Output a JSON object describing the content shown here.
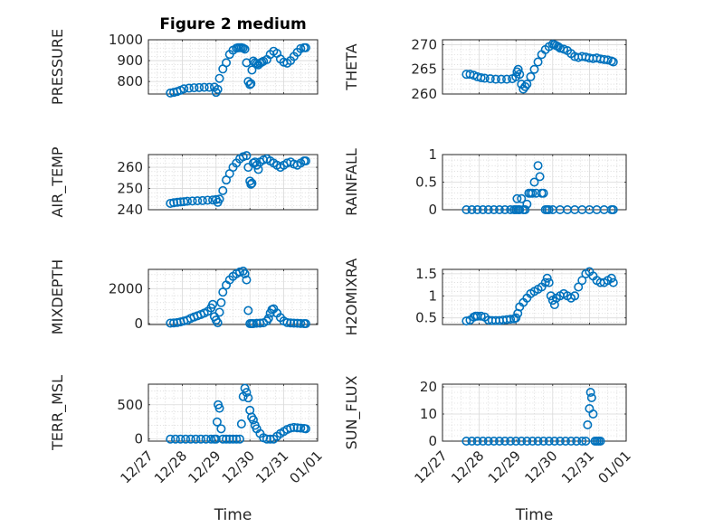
{
  "chart_data": [
    {
      "id": "pressure",
      "type": "scatter",
      "title": "Figure 2 medium",
      "ylabel": "PRESSURE",
      "xlabel": "",
      "ylim": [
        740,
        1000
      ],
      "yticks": [
        800,
        900,
        1000
      ],
      "ytick_labels": [
        "800",
        "900",
        "1000"
      ],
      "xlim": [
        0,
        5
      ],
      "xtick_labels": [],
      "grid": true,
      "x": [
        0.65,
        0.75,
        0.85,
        0.95,
        1.05,
        1.2,
        1.35,
        1.5,
        1.65,
        1.8,
        1.95,
        2.0,
        2.05,
        2.1,
        2.2,
        2.3,
        2.4,
        2.5,
        2.6,
        2.65,
        2.7,
        2.75,
        2.8,
        2.85,
        2.9,
        2.95,
        3.0,
        3.03,
        3.06,
        3.1,
        3.15,
        3.2,
        3.25,
        3.3,
        3.35,
        3.4,
        3.5,
        3.6,
        3.7,
        3.8,
        3.9,
        4.0,
        4.1,
        4.2,
        4.3,
        4.4,
        4.5,
        4.6,
        4.65
      ],
      "y": [
        745,
        748,
        752,
        758,
        765,
        768,
        770,
        771,
        772,
        772,
        773,
        748,
        762,
        815,
        860,
        890,
        930,
        950,
        960,
        962,
        962,
        962,
        960,
        955,
        890,
        800,
        785,
        790,
        855,
        898,
        890,
        885,
        880,
        888,
        893,
        897,
        905,
        930,
        945,
        935,
        908,
        893,
        888,
        900,
        920,
        940,
        958,
        962,
        962
      ]
    },
    {
      "id": "theta",
      "type": "scatter",
      "title": "",
      "ylabel": "THETA",
      "xlabel": "",
      "ylim": [
        260,
        271
      ],
      "yticks": [
        260,
        265,
        270
      ],
      "ytick_labels": [
        "260",
        "265",
        "270"
      ],
      "xlim": [
        0,
        5
      ],
      "xtick_labels": [],
      "grid": true,
      "x": [
        0.65,
        0.75,
        0.85,
        0.95,
        1.05,
        1.15,
        1.3,
        1.45,
        1.6,
        1.75,
        1.9,
        2.0,
        2.03,
        2.06,
        2.1,
        2.15,
        2.2,
        2.25,
        2.3,
        2.4,
        2.5,
        2.6,
        2.7,
        2.8,
        2.9,
        3.0,
        3.05,
        3.1,
        3.15,
        3.2,
        3.3,
        3.4,
        3.5,
        3.6,
        3.7,
        3.8,
        3.9,
        4.0,
        4.1,
        4.2,
        4.3,
        4.4,
        4.5,
        4.6,
        4.65
      ],
      "y": [
        264,
        264,
        263.8,
        263.5,
        263.3,
        263.2,
        263.1,
        263,
        263,
        263,
        263.1,
        263.5,
        264.5,
        265,
        264,
        262,
        261,
        261.5,
        262,
        263.5,
        265,
        266.5,
        268,
        269,
        269.6,
        270.1,
        270,
        269.8,
        269.6,
        269.3,
        269.1,
        268.8,
        268.2,
        267.6,
        267.4,
        267.6,
        267.5,
        267.3,
        267.2,
        267.3,
        267.1,
        267,
        266.9,
        266.7,
        266.5
      ]
    },
    {
      "id": "air_temp",
      "type": "scatter",
      "title": "",
      "ylabel": "AIR_TEMP",
      "xlabel": "",
      "ylim": [
        240,
        266
      ],
      "yticks": [
        240,
        250,
        260
      ],
      "ytick_labels": [
        "240",
        "250",
        "260"
      ],
      "xlim": [
        0,
        5
      ],
      "xtick_labels": [],
      "grid": true,
      "x": [
        0.65,
        0.75,
        0.85,
        0.95,
        1.05,
        1.15,
        1.3,
        1.45,
        1.6,
        1.75,
        1.9,
        2.0,
        2.05,
        2.1,
        2.2,
        2.3,
        2.4,
        2.5,
        2.6,
        2.7,
        2.8,
        2.9,
        2.95,
        3.0,
        3.03,
        3.06,
        3.1,
        3.15,
        3.2,
        3.25,
        3.3,
        3.4,
        3.5,
        3.6,
        3.7,
        3.8,
        3.9,
        4.0,
        4.1,
        4.2,
        4.3,
        4.4,
        4.5,
        4.6,
        4.65
      ],
      "y": [
        243,
        243.3,
        243.5,
        243.7,
        243.8,
        244,
        244.1,
        244.2,
        244.3,
        244.5,
        244.6,
        244.8,
        243.5,
        245,
        249,
        254,
        257,
        260,
        262,
        264,
        265,
        265.5,
        260,
        253.5,
        252,
        252.5,
        262,
        262.5,
        261,
        259,
        262.5,
        263.5,
        264,
        263,
        262,
        261,
        260,
        261,
        262,
        262.5,
        261.5,
        261,
        262,
        263,
        263
      ]
    },
    {
      "id": "rainfall",
      "type": "scatter",
      "title": "",
      "ylabel": "RAINFALL",
      "xlabel": "",
      "ylim": [
        0,
        1
      ],
      "yticks": [
        0,
        0.5,
        1
      ],
      "ytick_labels": [
        "0",
        "0.5",
        "1"
      ],
      "xlim": [
        0,
        5
      ],
      "xtick_labels": [],
      "grid": true,
      "x": [
        0.65,
        0.8,
        0.95,
        1.1,
        1.25,
        1.4,
        1.55,
        1.7,
        1.85,
        1.95,
        2.0,
        2.03,
        2.06,
        2.1,
        2.15,
        2.2,
        2.25,
        2.3,
        2.35,
        2.4,
        2.45,
        2.5,
        2.55,
        2.6,
        2.65,
        2.7,
        2.75,
        2.8,
        2.85,
        2.9,
        3.0,
        3.2,
        3.4,
        3.6,
        3.8,
        4.0,
        4.2,
        4.4,
        4.6,
        4.65
      ],
      "y": [
        0,
        0,
        0,
        0,
        0,
        0,
        0,
        0,
        0,
        0,
        0,
        0.2,
        0,
        0,
        0.2,
        0,
        0,
        0.1,
        0.3,
        0.3,
        0.3,
        0.5,
        0.3,
        0.8,
        0.6,
        0.3,
        0.3,
        0,
        0,
        0,
        0,
        0,
        0,
        0,
        0,
        0,
        0,
        0,
        0,
        0
      ]
    },
    {
      "id": "mixdepth",
      "type": "scatter",
      "title": "",
      "ylabel": "MIXDEPTH",
      "xlabel": "",
      "ylim": [
        -50,
        3100
      ],
      "yticks": [
        0,
        2000
      ],
      "ytick_labels": [
        "0",
        "2000"
      ],
      "xlim": [
        0,
        5
      ],
      "xtick_labels": [],
      "grid": true,
      "x": [
        0.65,
        0.75,
        0.85,
        0.95,
        1.05,
        1.15,
        1.25,
        1.35,
        1.45,
        1.55,
        1.65,
        1.75,
        1.85,
        1.9,
        1.95,
        2.0,
        2.05,
        2.1,
        2.15,
        2.2,
        2.3,
        2.4,
        2.5,
        2.6,
        2.7,
        2.8,
        2.85,
        2.9,
        2.95,
        3.0,
        3.05,
        3.1,
        3.2,
        3.3,
        3.4,
        3.5,
        3.55,
        3.6,
        3.65,
        3.7,
        3.8,
        3.9,
        4.0,
        4.1,
        4.2,
        4.3,
        4.4,
        4.5,
        4.6,
        4.65
      ],
      "y": [
        30,
        40,
        60,
        100,
        150,
        200,
        300,
        380,
        450,
        520,
        600,
        700,
        900,
        1100,
        400,
        200,
        50,
        650,
        1200,
        1800,
        2200,
        2500,
        2700,
        2850,
        2950,
        3000,
        2850,
        2500,
        750,
        0,
        0,
        0,
        20,
        30,
        50,
        150,
        300,
        600,
        800,
        850,
        600,
        350,
        150,
        60,
        40,
        30,
        20,
        10,
        0,
        0
      ]
    },
    {
      "id": "h2omixra",
      "type": "scatter",
      "title": "",
      "ylabel": "H2OMIXRA",
      "xlabel": "",
      "ylim": [
        0.35,
        1.6
      ],
      "yticks": [
        0.5,
        1,
        1.5
      ],
      "ytick_labels": [
        "0.5",
        "1",
        "1.5"
      ],
      "xlim": [
        0,
        5
      ],
      "xtick_labels": [],
      "grid": true,
      "x": [
        0.65,
        0.75,
        0.85,
        0.9,
        0.95,
        1.05,
        1.15,
        1.25,
        1.35,
        1.45,
        1.55,
        1.65,
        1.75,
        1.85,
        1.95,
        2.0,
        2.05,
        2.1,
        2.2,
        2.3,
        2.4,
        2.5,
        2.6,
        2.7,
        2.8,
        2.85,
        2.9,
        2.95,
        3.0,
        3.05,
        3.1,
        3.2,
        3.3,
        3.4,
        3.5,
        3.6,
        3.7,
        3.8,
        3.9,
        4.0,
        4.1,
        4.2,
        4.3,
        4.4,
        4.5,
        4.6,
        4.65
      ],
      "y": [
        0.43,
        0.45,
        0.52,
        0.54,
        0.54,
        0.54,
        0.52,
        0.45,
        0.44,
        0.44,
        0.44,
        0.45,
        0.46,
        0.47,
        0.48,
        0.5,
        0.6,
        0.75,
        0.85,
        0.95,
        1.05,
        1.1,
        1.15,
        1.2,
        1.3,
        1.4,
        1.3,
        1.0,
        0.9,
        0.8,
        0.95,
        1.0,
        1.05,
        1.0,
        0.95,
        1.0,
        1.2,
        1.35,
        1.5,
        1.55,
        1.45,
        1.35,
        1.3,
        1.3,
        1.35,
        1.4,
        1.3
      ]
    },
    {
      "id": "terr_msl",
      "type": "scatter",
      "title": "",
      "ylabel": "TERR_MSL",
      "xlabel": "Time",
      "ylim": [
        -30,
        800
      ],
      "yticks": [
        0,
        500
      ],
      "ytick_labels": [
        "0",
        "500"
      ],
      "xlim": [
        0,
        5
      ],
      "xtick_labels": [
        "12/27",
        "12/28",
        "12/29",
        "12/30",
        "12/31",
        "01/01"
      ],
      "grid": true,
      "x": [
        0.65,
        0.8,
        0.95,
        1.1,
        1.25,
        1.4,
        1.55,
        1.7,
        1.85,
        1.95,
        2.0,
        2.03,
        2.06,
        2.1,
        2.15,
        2.2,
        2.3,
        2.4,
        2.5,
        2.6,
        2.7,
        2.75,
        2.8,
        2.85,
        2.9,
        2.95,
        3.0,
        3.05,
        3.1,
        3.15,
        3.2,
        3.3,
        3.4,
        3.5,
        3.6,
        3.7,
        3.8,
        3.9,
        4.0,
        4.1,
        4.2,
        4.3,
        4.4,
        4.5,
        4.6,
        4.65
      ],
      "y": [
        0,
        0,
        0,
        0,
        0,
        0,
        0,
        0,
        0,
        0,
        0,
        250,
        500,
        450,
        150,
        0,
        0,
        0,
        0,
        0,
        0,
        220,
        620,
        740,
        680,
        600,
        420,
        320,
        280,
        200,
        150,
        80,
        20,
        0,
        0,
        0,
        40,
        80,
        110,
        140,
        160,
        170,
        165,
        160,
        155,
        150
      ]
    },
    {
      "id": "sun_flux",
      "type": "scatter",
      "title": "",
      "ylabel": "SUN_FLUX",
      "xlabel": "Time",
      "ylim": [
        0,
        21
      ],
      "yticks": [
        0,
        10,
        20
      ],
      "ytick_labels": [
        "0",
        "10",
        "20"
      ],
      "xlim": [
        0,
        5
      ],
      "xtick_labels": [
        "12/27",
        "12/28",
        "12/29",
        "12/30",
        "12/31",
        "01/01"
      ],
      "grid": true,
      "x": [
        0.65,
        0.8,
        0.95,
        1.1,
        1.25,
        1.4,
        1.55,
        1.7,
        1.85,
        2.0,
        2.15,
        2.3,
        2.45,
        2.6,
        2.75,
        2.9,
        3.05,
        3.2,
        3.35,
        3.5,
        3.65,
        3.8,
        3.9,
        3.95,
        4.0,
        4.03,
        4.06,
        4.1,
        4.15,
        4.2,
        4.25,
        4.3
      ],
      "y": [
        0,
        0,
        0,
        0,
        0,
        0,
        0,
        0,
        0,
        0,
        0,
        0,
        0,
        0,
        0,
        0,
        0,
        0,
        0,
        0,
        0,
        0,
        0,
        6,
        12,
        18,
        16,
        10,
        0,
        0,
        0,
        0
      ]
    }
  ]
}
